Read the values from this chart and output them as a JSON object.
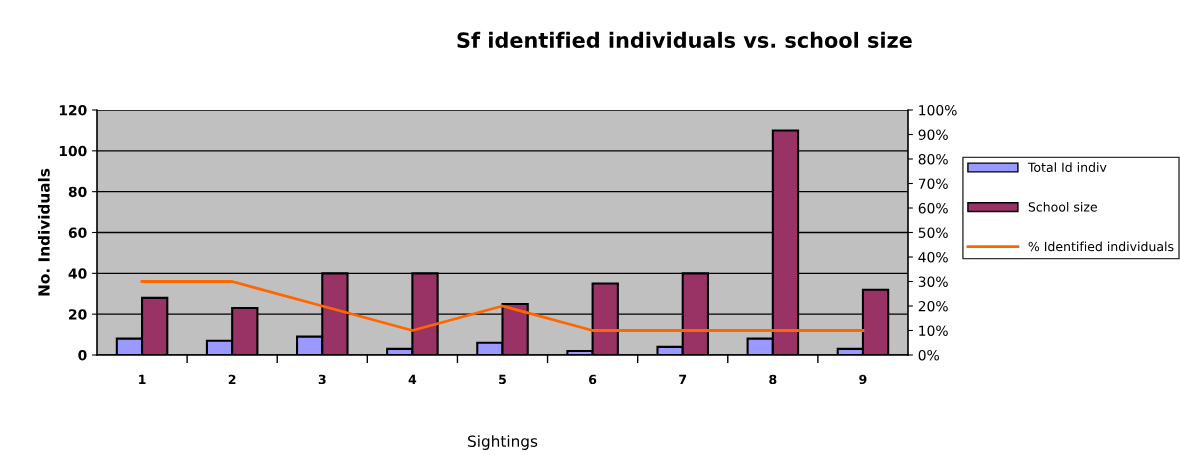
{
  "chart_data": {
    "type": "bar",
    "title": "Sf identified individuals vs. school size",
    "xlabel": "Sightings",
    "ylabel": "No. Individuals",
    "categories": [
      "1",
      "2",
      "3",
      "4",
      "5",
      "6",
      "7",
      "8",
      "9"
    ],
    "series": [
      {
        "name": "Total Id indiv",
        "color": "#9999ff",
        "values": [
          8,
          7,
          9,
          3,
          6,
          2,
          4,
          8,
          3
        ]
      },
      {
        "name": "School size",
        "color": "#993366",
        "values": [
          28,
          23,
          40,
          40,
          25,
          35,
          40,
          110,
          32
        ]
      },
      {
        "name": "% Identified individuals",
        "type": "line",
        "axis": "y2",
        "color": "#ff6600",
        "values": [
          30,
          30,
          20,
          10,
          20,
          10,
          10,
          10,
          10
        ]
      }
    ],
    "ylim": [
      0,
      120
    ],
    "yticks": [
      0,
      20,
      40,
      60,
      80,
      100,
      120
    ],
    "y2lim": [
      0,
      100
    ],
    "y2ticks": [
      {
        "value": 0,
        "label": "0%"
      },
      {
        "value": 10,
        "label": "10%"
      },
      {
        "value": 20,
        "label": "20%"
      },
      {
        "value": 30,
        "label": "30%"
      },
      {
        "value": 40,
        "label": "40%"
      },
      {
        "value": 50,
        "label": "50%"
      },
      {
        "value": 60,
        "label": "60%"
      },
      {
        "value": 70,
        "label": "70%"
      },
      {
        "value": 80,
        "label": "80%"
      },
      {
        "value": 90,
        "label": "90%"
      },
      {
        "value": 100,
        "label": "100%"
      }
    ],
    "grid": "y",
    "legend": "right",
    "marker": "none"
  }
}
